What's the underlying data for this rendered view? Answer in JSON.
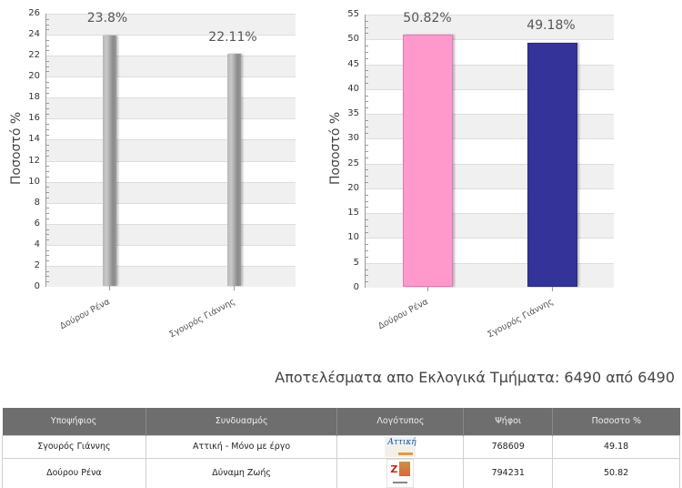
{
  "chart_data": [
    {
      "type": "bar",
      "title": "",
      "xlabel": "",
      "ylabel": "Ποσοστό %",
      "categories": [
        "Δούρου Ρένα",
        "Σγουρός Γιάννης"
      ],
      "values": [
        23.8,
        22.11
      ],
      "data_labels": [
        "23.8%",
        "22.11%"
      ],
      "ylim": [
        0,
        26
      ],
      "yticks": [
        0,
        2,
        4,
        6,
        8,
        10,
        12,
        14,
        16,
        18,
        20,
        22,
        24,
        26
      ],
      "grid": true,
      "bar_color": "#999999",
      "legend": null
    },
    {
      "type": "bar",
      "title": "",
      "xlabel": "",
      "ylabel": "Ποσοστό %",
      "categories": [
        "Δούρου Ρένα",
        "Σγουρός Γιάννης"
      ],
      "values": [
        50.82,
        49.18
      ],
      "data_labels": [
        "50.82%",
        "49.18%"
      ],
      "ylim": [
        0,
        55
      ],
      "yticks": [
        0,
        5,
        10,
        15,
        20,
        25,
        30,
        35,
        40,
        45,
        50,
        55
      ],
      "grid": true,
      "bar_colors": [
        "#ff99cc",
        "#333399"
      ],
      "legend": null
    }
  ],
  "charts": {
    "left": {
      "ylabel": "Ποσοστό %",
      "ticks": [
        "0",
        "2",
        "4",
        "6",
        "8",
        "10",
        "12",
        "14",
        "16",
        "18",
        "20",
        "22",
        "24",
        "26"
      ],
      "bars": [
        {
          "label": "Δούρου Ρένα",
          "value_label": "23.8%"
        },
        {
          "label": "Σγουρός Γιάννης",
          "value_label": "22.11%"
        }
      ]
    },
    "right": {
      "ylabel": "Ποσοστό %",
      "ticks": [
        "0",
        "5",
        "10",
        "15",
        "20",
        "25",
        "30",
        "35",
        "40",
        "45",
        "50",
        "55"
      ],
      "bars": [
        {
          "label": "Δούρου Ρένα",
          "value_label": "50.82%",
          "color": "#ff99cc"
        },
        {
          "label": "Σγουρός Γιάννης",
          "value_label": "49.18%",
          "color": "#333399"
        }
      ]
    }
  },
  "results": {
    "title": "Αποτελέσματα απο Εκλογικά Τμήματα: 6490 από 6490",
    "columns": [
      "Υποψήφιος",
      "Συνδυασμός",
      "Λογότυπος",
      "Ψήφοι",
      "Ποσοστο %"
    ],
    "rows": [
      {
        "candidate": "Σγουρός Γιάννης",
        "party": "Αττική - Μόνο με έργο",
        "logo": "attiki-logo",
        "votes": "768609",
        "percent": "49.18"
      },
      {
        "candidate": "Δούρου Ρένα",
        "party": "Δύναμη Ζωής",
        "logo": "dynami-zois-logo",
        "votes": "794231",
        "percent": "50.82"
      }
    ],
    "header_bg": "#6e6e6e"
  }
}
